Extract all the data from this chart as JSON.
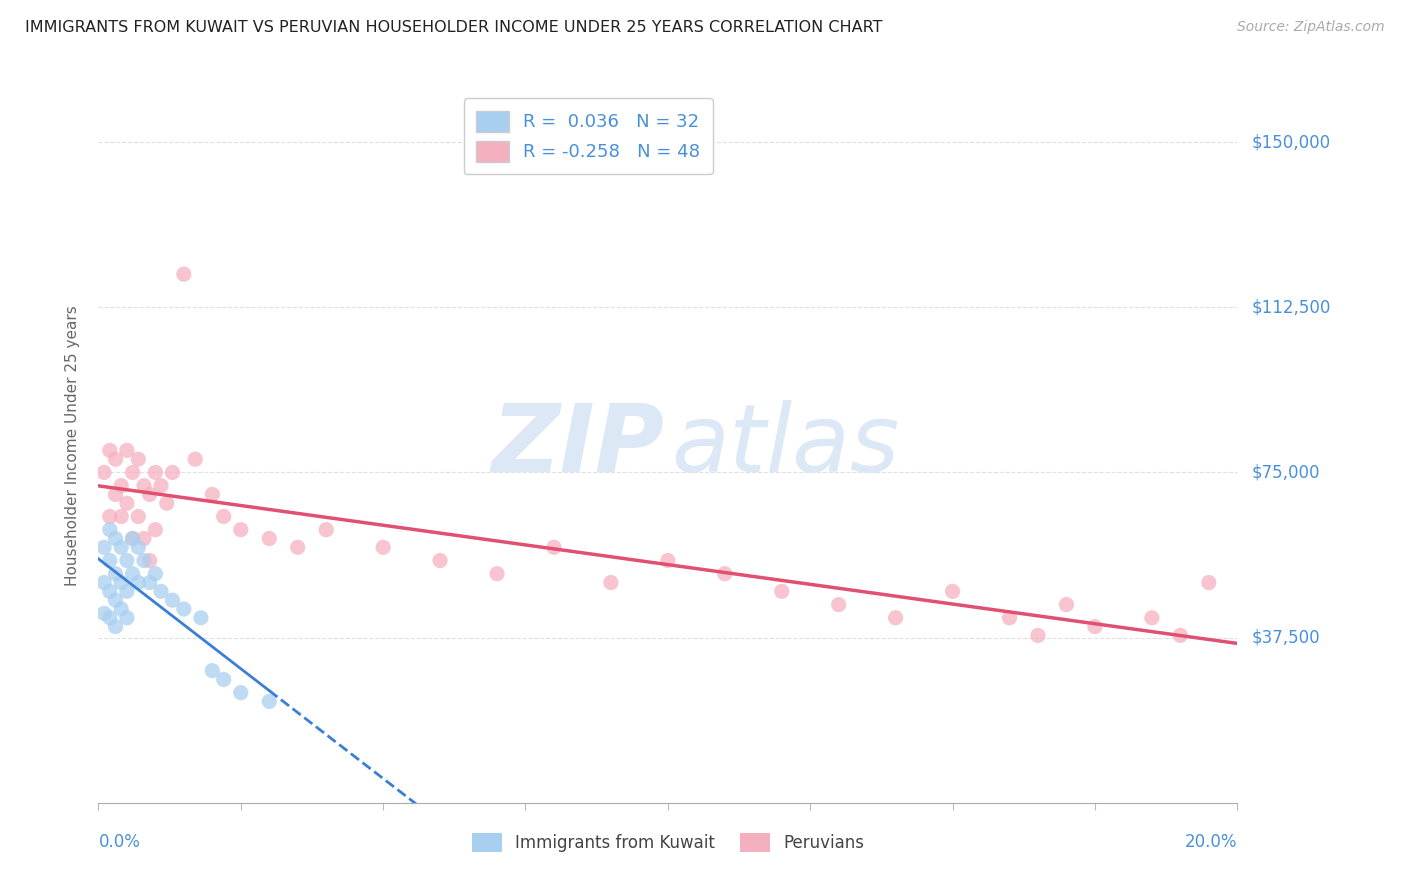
{
  "title": "IMMIGRANTS FROM KUWAIT VS PERUVIAN HOUSEHOLDER INCOME UNDER 25 YEARS CORRELATION CHART",
  "source": "Source: ZipAtlas.com",
  "ylabel": "Householder Income Under 25 years",
  "r1": 0.036,
  "n1": 32,
  "r2": -0.258,
  "n2": 48,
  "color1": "#a8cff0",
  "color2": "#f5b0c0",
  "trendline1_color": "#3a7fd5",
  "trendline2_color": "#e05070",
  "ytick_labels": [
    "$37,500",
    "$75,000",
    "$112,500",
    "$150,000"
  ],
  "ytick_values": [
    37500,
    75000,
    112500,
    150000
  ],
  "xmin": 0.0,
  "xmax": 0.2,
  "ymin": 0,
  "ymax": 162000,
  "legend_label1": "Immigrants from Kuwait",
  "legend_label2": "Peruvians",
  "blue_color": "#4a90d9",
  "grid_color": "#e0e0e0",
  "kuwait_x": [
    0.001,
    0.001,
    0.001,
    0.002,
    0.002,
    0.002,
    0.002,
    0.003,
    0.003,
    0.003,
    0.003,
    0.004,
    0.004,
    0.004,
    0.005,
    0.005,
    0.005,
    0.006,
    0.006,
    0.007,
    0.007,
    0.008,
    0.009,
    0.01,
    0.011,
    0.013,
    0.015,
    0.018,
    0.02,
    0.022,
    0.025,
    0.03
  ],
  "kuwait_y": [
    58000,
    50000,
    43000,
    62000,
    55000,
    48000,
    42000,
    60000,
    52000,
    46000,
    40000,
    58000,
    50000,
    44000,
    55000,
    48000,
    42000,
    60000,
    52000,
    58000,
    50000,
    55000,
    50000,
    52000,
    48000,
    46000,
    44000,
    42000,
    30000,
    28000,
    25000,
    23000
  ],
  "peruvian_x": [
    0.001,
    0.002,
    0.002,
    0.003,
    0.003,
    0.004,
    0.004,
    0.005,
    0.005,
    0.006,
    0.006,
    0.007,
    0.007,
    0.008,
    0.008,
    0.009,
    0.009,
    0.01,
    0.01,
    0.011,
    0.012,
    0.013,
    0.015,
    0.017,
    0.02,
    0.022,
    0.025,
    0.03,
    0.035,
    0.04,
    0.05,
    0.06,
    0.07,
    0.08,
    0.09,
    0.1,
    0.11,
    0.12,
    0.13,
    0.14,
    0.15,
    0.16,
    0.165,
    0.17,
    0.175,
    0.185,
    0.19,
    0.195
  ],
  "peruvian_y": [
    75000,
    80000,
    65000,
    78000,
    70000,
    72000,
    65000,
    80000,
    68000,
    75000,
    60000,
    78000,
    65000,
    72000,
    60000,
    70000,
    55000,
    75000,
    62000,
    72000,
    68000,
    75000,
    120000,
    78000,
    70000,
    65000,
    62000,
    60000,
    58000,
    62000,
    58000,
    55000,
    52000,
    58000,
    50000,
    55000,
    52000,
    48000,
    45000,
    42000,
    48000,
    42000,
    38000,
    45000,
    40000,
    42000,
    38000,
    50000
  ]
}
